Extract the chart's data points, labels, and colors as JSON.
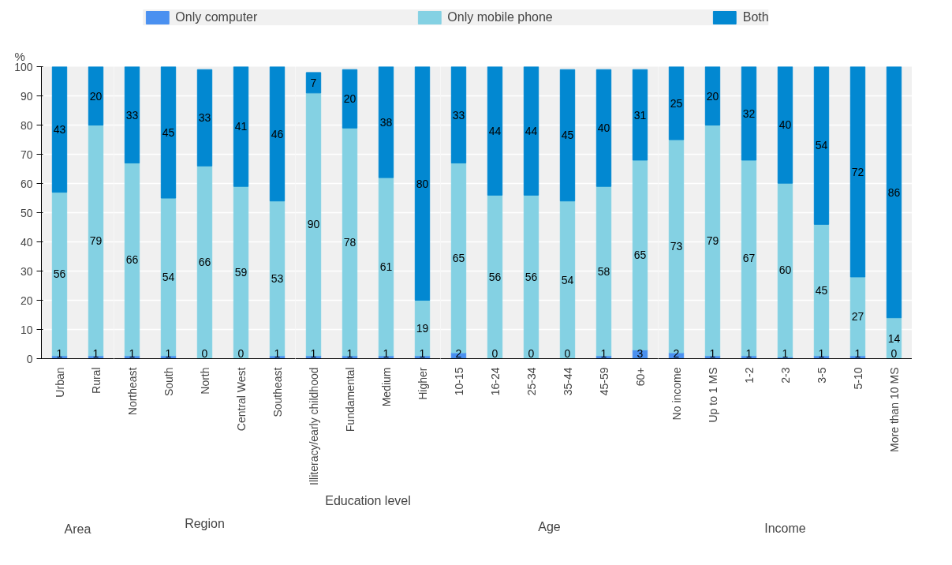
{
  "chart_data": [
    {
      "type": "bar",
      "stacked": true,
      "xlabel": "Area",
      "ylabel": "%",
      "ylim": [
        0,
        100
      ],
      "yticks": [
        0,
        10,
        20,
        30,
        40,
        50,
        60,
        70,
        80,
        90,
        100
      ],
      "grid": "y",
      "legend": "top",
      "data_labels": true,
      "categories": [
        "Urban",
        "Rural"
      ],
      "series": [
        {
          "name": "Only computer",
          "color": "#4a90f0",
          "values": [
            1,
            1
          ]
        },
        {
          "name": "Only mobile phone",
          "color": "#84d1e3",
          "values": [
            56,
            79
          ]
        },
        {
          "name": "Both",
          "color": "#0288d1",
          "values": [
            43,
            20
          ]
        }
      ]
    },
    {
      "type": "bar",
      "stacked": true,
      "xlabel": "Region",
      "ylim": [
        0,
        100
      ],
      "yticks": [
        0,
        10,
        20,
        30,
        40,
        50,
        60,
        70,
        80,
        90,
        100
      ],
      "tick_labels": "x",
      "grid": "y",
      "data_labels": true,
      "categories": [
        "Northeast",
        "South",
        "North",
        "Central West",
        "Southeast"
      ],
      "series": [
        {
          "color": "#4a90f0",
          "values": [
            1,
            1,
            0,
            0,
            1
          ]
        },
        {
          "color": "#84d1e3",
          "values": [
            66,
            54,
            66,
            59,
            53
          ]
        },
        {
          "color": "#0288d1",
          "values": [
            33,
            45,
            33,
            41,
            46
          ]
        }
      ]
    },
    {
      "type": "bar",
      "stacked": true,
      "xlabel": "Education level",
      "ylim": [
        0,
        100
      ],
      "yticks": [
        0,
        10,
        20,
        30,
        40,
        50,
        60,
        70,
        80,
        90,
        100
      ],
      "tick_labels": "x",
      "grid": "y",
      "data_labels": true,
      "categories": [
        "Illiteracy/early childhood",
        "Fundamental",
        "Medium",
        "Higher"
      ],
      "series": [
        {
          "color": "#4a90f0",
          "values": [
            1,
            1,
            1,
            1
          ]
        },
        {
          "color": "#84d1e3",
          "values": [
            90,
            78,
            61,
            19
          ]
        },
        {
          "color": "#0288d1",
          "values": [
            7,
            20,
            38,
            80
          ]
        }
      ]
    },
    {
      "type": "bar",
      "stacked": true,
      "xlabel": "Age",
      "ylim": [
        0,
        100
      ],
      "yticks": [
        0,
        10,
        20,
        30,
        40,
        50,
        60,
        70,
        80,
        90,
        100
      ],
      "tick_labels": "x",
      "grid": "y",
      "data_labels": true,
      "categories": [
        "10-15",
        "16-24",
        "25-34",
        "35-44",
        "45-59",
        "60+"
      ],
      "series": [
        {
          "color": "#4a90f0",
          "values": [
            2,
            0,
            0,
            0,
            1,
            3
          ]
        },
        {
          "color": "#84d1e3",
          "values": [
            65,
            56,
            56,
            54,
            58,
            65
          ]
        },
        {
          "color": "#0288d1",
          "values": [
            33,
            44,
            44,
            45,
            40,
            31
          ]
        }
      ]
    },
    {
      "type": "bar",
      "stacked": true,
      "xlabel": "Income",
      "ylim": [
        0,
        100
      ],
      "yticks": [
        0,
        10,
        20,
        30,
        40,
        50,
        60,
        70,
        80,
        90,
        100
      ],
      "tick_labels": "x",
      "grid": "y",
      "categories": [
        "No income",
        "Up to 1 MS",
        "1-2",
        "2-3",
        "3-5",
        "5-10",
        "More than 10 MS"
      ],
      "series": [
        {
          "color": "#4a90f0",
          "values": [
            2,
            1,
            1,
            0.6,
            1,
            1,
            0
          ],
          "value_labels": [
            "2",
            "1",
            "1",
            "1",
            "1",
            "1",
            "0"
          ]
        },
        {
          "color": "#84d1e3",
          "values": [
            73,
            79,
            67,
            59.5,
            45,
            27,
            14
          ],
          "value_labels": [
            "73",
            "79",
            "67",
            "60",
            "45",
            "27",
            "14"
          ]
        },
        {
          "color": "#0288d1",
          "values": [
            25,
            20,
            32,
            39.9,
            54,
            72,
            86
          ],
          "value_labels": [
            "25",
            "20",
            "32",
            "40",
            "54",
            "72",
            "86"
          ]
        }
      ]
    }
  ]
}
